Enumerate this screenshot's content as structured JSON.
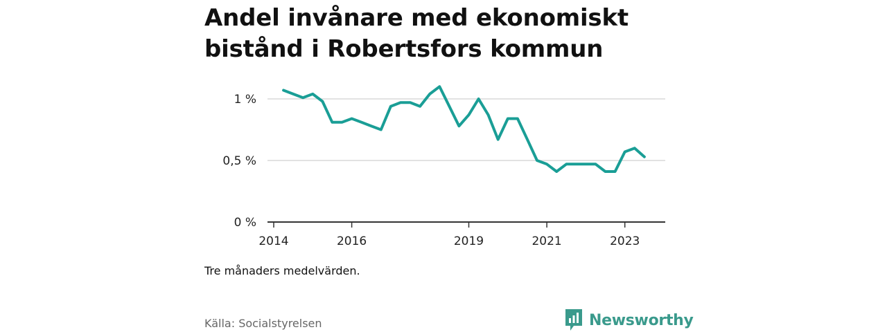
{
  "title": "Andel invånare med ekonomiskt bistånd i Robertsfors kommun",
  "note": "Tre månaders medelvärden.",
  "source": "Källa: Socialstyrelsen",
  "brand": "Newsworthy",
  "colors": {
    "line": "#1a9e96",
    "grid": "#d9d9d9",
    "axis": "#333333",
    "brand": "#3a9a8c"
  },
  "chart_data": {
    "type": "line",
    "title": "Andel invånare med ekonomiskt bistånd i Robertsfors kommun",
    "xlabel": "",
    "ylabel": "",
    "x_ticks": [
      "2014",
      "2016",
      "2019",
      "2021",
      "2023"
    ],
    "y_ticks": [
      {
        "value": 0,
        "label": "0 %"
      },
      {
        "value": 0.5,
        "label": "0,5 %"
      },
      {
        "value": 1,
        "label": "1 %"
      }
    ],
    "ylim": [
      0,
      1.1
    ],
    "xlim": [
      "2014-01",
      "2024-01"
    ],
    "grid": "horizontal",
    "series": [
      {
        "x": [
          "2014-04",
          "2014-07",
          "2014-10",
          "2015-01",
          "2015-04",
          "2015-07",
          "2015-10",
          "2016-01",
          "2016-04",
          "2016-07",
          "2016-10",
          "2017-01",
          "2017-04",
          "2017-07",
          "2017-10",
          "2018-01",
          "2018-04",
          "2018-07",
          "2018-10",
          "2019-01",
          "2019-04",
          "2019-07",
          "2019-10",
          "2020-01",
          "2020-04",
          "2020-07",
          "2020-10",
          "2021-01",
          "2021-04",
          "2021-07",
          "2021-10",
          "2022-01",
          "2022-04",
          "2022-07",
          "2022-10",
          "2023-01",
          "2023-04",
          "2023-07"
        ],
        "values": [
          1.07,
          1.04,
          1.01,
          1.04,
          0.98,
          0.81,
          0.81,
          0.84,
          0.81,
          0.78,
          0.75,
          0.94,
          0.97,
          0.97,
          0.94,
          1.04,
          1.1,
          0.94,
          0.78,
          0.87,
          1.0,
          0.87,
          0.67,
          0.84,
          0.84,
          0.67,
          0.5,
          0.47,
          0.41,
          0.47,
          0.47,
          0.47,
          0.47,
          0.41,
          0.41,
          0.57,
          0.6,
          0.53
        ]
      }
    ]
  }
}
